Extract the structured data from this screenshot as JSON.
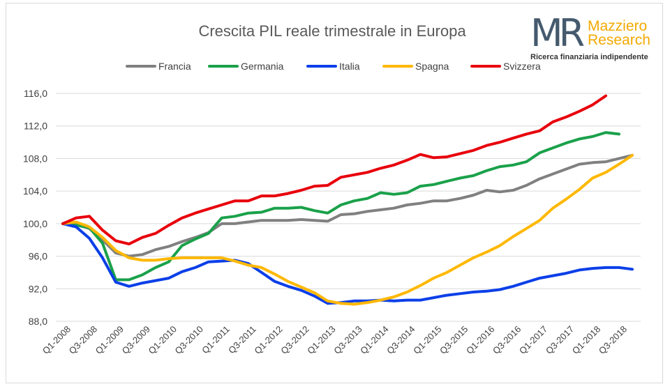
{
  "logo": {
    "mark": "MR",
    "name_line1": "Mazziero",
    "name_line2": "Research",
    "tagline": "Ricerca finanziaria indipendente"
  },
  "chart_data": {
    "type": "line",
    "title": "Crescita PIL reale trimestrale in Europa",
    "xlabel": "",
    "ylabel": "",
    "ylim": [
      88.0,
      116.0
    ],
    "y_ticks": [
      "116,0",
      "112,0",
      "108,0",
      "104,0",
      "100,0",
      "96,0",
      "92,0",
      "88,0"
    ],
    "y_tick_values": [
      116,
      112,
      108,
      104,
      100,
      96,
      92,
      88
    ],
    "x": [
      "Q1-2008",
      "Q2-2008",
      "Q3-2008",
      "Q4-2008",
      "Q1-2009",
      "Q2-2009",
      "Q3-2009",
      "Q4-2009",
      "Q1-2010",
      "Q2-2010",
      "Q3-2010",
      "Q4-2010",
      "Q1-2011",
      "Q2-2011",
      "Q3-2011",
      "Q4-2011",
      "Q1-2012",
      "Q2-2012",
      "Q3-2012",
      "Q4-2012",
      "Q1-2013",
      "Q2-2013",
      "Q3-2013",
      "Q4-2013",
      "Q1-2014",
      "Q2-2014",
      "Q3-2014",
      "Q4-2014",
      "Q1-2015",
      "Q2-2015",
      "Q3-2015",
      "Q4-2015",
      "Q1-2016",
      "Q2-2016",
      "Q3-2016",
      "Q4-2016",
      "Q1-2017",
      "Q2-2017",
      "Q3-2017",
      "Q4-2017",
      "Q1-2018",
      "Q2-2018",
      "Q3-2018",
      "Q4-2018"
    ],
    "x_tick_labels": [
      "Q1-2008",
      "Q3-2008",
      "Q1-2009",
      "Q3-2009",
      "Q1-2010",
      "Q3-2010",
      "Q1-2011",
      "Q3-2011",
      "Q1-2012",
      "Q3-2012",
      "Q1-2013",
      "Q3-2013",
      "Q1-2014",
      "Q3-2014",
      "Q1-2015",
      "Q3-2015",
      "Q1-2016",
      "Q3-2016",
      "Q1-2017",
      "Q3-2017",
      "Q1-2018",
      "Q3-2018"
    ],
    "grid": true,
    "legend_position": "top",
    "series": [
      {
        "name": "Francia",
        "color": "#808080",
        "values": [
          100.0,
          99.9,
          99.4,
          98.0,
          96.4,
          96.0,
          96.2,
          96.8,
          97.2,
          97.8,
          98.3,
          98.9,
          100.0,
          100.0,
          100.2,
          100.4,
          100.4,
          100.4,
          100.5,
          100.4,
          100.3,
          101.1,
          101.2,
          101.5,
          101.7,
          101.9,
          102.3,
          102.5,
          102.8,
          102.8,
          103.1,
          103.5,
          104.1,
          103.9,
          104.1,
          104.7,
          105.5,
          106.1,
          106.7,
          107.3,
          107.5,
          107.6,
          108.0,
          108.4
        ]
      },
      {
        "name": "Germania",
        "color": "#1aa14a",
        "values": [
          100.0,
          99.8,
          99.5,
          97.6,
          93.1,
          93.1,
          93.7,
          94.6,
          95.3,
          97.3,
          98.1,
          98.8,
          100.7,
          100.9,
          101.3,
          101.4,
          101.9,
          101.9,
          102.0,
          101.6,
          101.3,
          102.3,
          102.8,
          103.1,
          103.8,
          103.6,
          103.8,
          104.6,
          104.8,
          105.2,
          105.6,
          105.9,
          106.5,
          107.0,
          107.2,
          107.6,
          108.7,
          109.3,
          109.9,
          110.4,
          110.7,
          111.2,
          111.0,
          null
        ]
      },
      {
        "name": "Italia",
        "color": "#0b3fe8",
        "values": [
          100.0,
          99.6,
          98.2,
          95.8,
          92.8,
          92.3,
          92.7,
          93.0,
          93.3,
          94.1,
          94.6,
          95.3,
          95.4,
          95.5,
          95.1,
          94.0,
          92.9,
          92.3,
          91.8,
          91.1,
          90.2,
          90.3,
          90.5,
          90.5,
          90.6,
          90.5,
          90.6,
          90.6,
          90.9,
          91.2,
          91.4,
          91.6,
          91.7,
          91.9,
          92.3,
          92.8,
          93.3,
          93.6,
          93.9,
          94.3,
          94.5,
          94.6,
          94.6,
          94.4
        ]
      },
      {
        "name": "Spagna",
        "color": "#ffb800",
        "values": [
          100.0,
          100.2,
          99.6,
          98.3,
          96.7,
          95.8,
          95.5,
          95.5,
          95.7,
          95.8,
          95.8,
          95.8,
          95.8,
          95.4,
          94.9,
          94.6,
          93.8,
          92.9,
          92.2,
          91.5,
          90.5,
          90.2,
          90.1,
          90.3,
          90.6,
          91.0,
          91.6,
          92.4,
          93.3,
          94.0,
          94.9,
          95.8,
          96.5,
          97.3,
          98.4,
          99.4,
          100.4,
          101.9,
          103.0,
          104.2,
          105.6,
          106.3,
          107.3,
          108.4
        ]
      },
      {
        "name": "Svizzera",
        "color": "#e8000b",
        "values": [
          100.0,
          100.7,
          100.9,
          99.2,
          97.9,
          97.5,
          98.3,
          98.8,
          99.8,
          100.7,
          101.3,
          101.8,
          102.3,
          102.8,
          102.8,
          103.4,
          103.4,
          103.7,
          104.1,
          104.6,
          104.7,
          105.7,
          106.0,
          106.3,
          106.8,
          107.2,
          107.8,
          108.5,
          108.1,
          108.2,
          108.6,
          109.0,
          109.6,
          110.0,
          110.5,
          111.0,
          111.4,
          112.5,
          113.1,
          113.8,
          114.6,
          115.7,
          null,
          null
        ]
      }
    ]
  }
}
